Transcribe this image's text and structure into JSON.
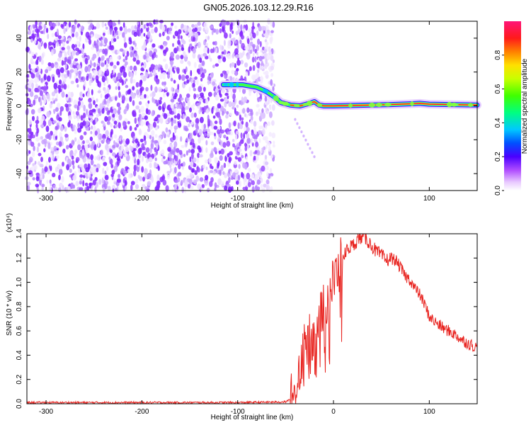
{
  "title": "GN05.2026.103.12.29.R16",
  "colors": {
    "snr_line": "#e8231f",
    "spectral_dots": "#7a1cff",
    "ridge_core": "#ff1030"
  },
  "chart_data": [
    {
      "type": "heatmap",
      "xlabel": "Height of straight line (km)",
      "ylabel": "Frequency (Hz)",
      "xlim": [
        -320,
        150
      ],
      "ylim": [
        -50,
        50
      ],
      "xticks": [
        -300,
        -200,
        -100,
        0,
        100
      ],
      "yticks": [
        -40,
        -20,
        0,
        20,
        40
      ],
      "noise_region_x": [
        -320,
        -62
      ],
      "ridge_x": [
        -115,
        -95,
        -80,
        -70,
        -62,
        -55,
        -45,
        -35,
        -25,
        -20,
        -15,
        -10,
        -5,
        0,
        40,
        60,
        80,
        90,
        100,
        150
      ],
      "ridge_y": [
        12.5,
        12.5,
        11,
        8.5,
        5.5,
        2,
        0.5,
        0,
        1.5,
        2.5,
        0.5,
        0,
        0,
        0,
        0.5,
        0.8,
        1.2,
        1.5,
        1,
        0.5
      ],
      "faint_trail": {
        "x": [
          -40,
          -20
        ],
        "y": [
          -8,
          -30
        ]
      },
      "colorbar": {
        "label": "Normalized spectral amplitude",
        "range": [
          0,
          1
        ],
        "ticks": [
          "0.0",
          "0.2",
          "0.4",
          "0.6",
          "0.8"
        ]
      }
    },
    {
      "type": "line",
      "xlabel": "Height of straight line (km)",
      "ylabel": "SNR (10 * v/v)",
      "scale_note": "(x10⁴)",
      "xlim": [
        -320,
        150
      ],
      "ylim": [
        0,
        1.4
      ],
      "xticks": [
        -300,
        -200,
        -100,
        0,
        100
      ],
      "yticks": [
        "0.0",
        "0.2",
        "0.4",
        "0.6",
        "0.8",
        "1.0",
        "1.2",
        "1.4"
      ],
      "series": [
        {
          "x": [
            -320,
            -200,
            -100,
            -50,
            -42,
            -38,
            -35,
            -30,
            -25,
            -20,
            -15,
            -10,
            -5,
            0,
            5,
            10,
            15,
            20,
            25,
            30,
            35,
            40,
            45,
            50,
            55,
            60,
            65,
            70,
            75,
            80,
            85,
            90,
            95,
            100,
            105,
            110,
            115,
            120,
            125,
            130,
            135,
            140,
            145,
            150
          ],
          "values": [
            0.01,
            0.01,
            0.01,
            0.015,
            0.05,
            0.15,
            0.35,
            0.45,
            0.52,
            0.62,
            0.72,
            0.8,
            0.9,
            1.0,
            1.1,
            1.2,
            1.28,
            1.3,
            1.35,
            1.38,
            1.35,
            1.3,
            1.25,
            1.22,
            1.18,
            1.2,
            1.18,
            1.12,
            1.05,
            1.02,
            0.95,
            0.9,
            0.82,
            0.72,
            0.68,
            0.65,
            0.62,
            0.6,
            0.58,
            0.55,
            0.52,
            0.5,
            0.48,
            0.46
          ]
        }
      ]
    }
  ]
}
